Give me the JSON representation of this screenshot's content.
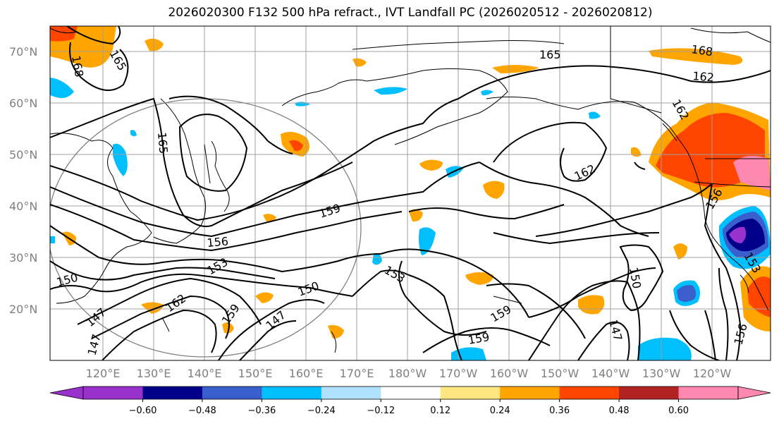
{
  "title": "2026020300 F132 500 hPa refract., IVT Landfall PC (2026020512 - 2026020812)",
  "lat_labels": [
    "70°N",
    "60°N",
    "50°N",
    "40°N",
    "30°N",
    "20°N"
  ],
  "lon_labels": [
    "120°E",
    "130°E",
    "140°E",
    "150°E",
    "160°E",
    "170°E",
    "180°W",
    "170°W",
    "160°W",
    "150°W",
    "140°W",
    "130°W",
    "120°W"
  ],
  "contour_labels": [
    "165",
    "168",
    "165",
    "168",
    "165",
    "162",
    "162",
    "162",
    "159",
    "156",
    "156",
    "153",
    "153",
    "150",
    "150",
    "150",
    "162",
    "159",
    "147",
    "147",
    "159",
    "159",
    "147",
    "153",
    "156",
    "147"
  ],
  "colorbar": {
    "ticks": [
      "−0.60",
      "−0.48",
      "−0.36",
      "−0.24",
      "−0.12",
      "0.12",
      "0.24",
      "0.36",
      "0.48",
      "0.60"
    ],
    "colors": [
      "#9932cc",
      "#00008b",
      "#3a5fcd",
      "#00bfff",
      "#b0e2ff",
      "#ffffff",
      "#ffe680",
      "#ffa500",
      "#ff4500",
      "#b22222",
      "#ff88b0",
      "#ff88b0"
    ]
  }
}
